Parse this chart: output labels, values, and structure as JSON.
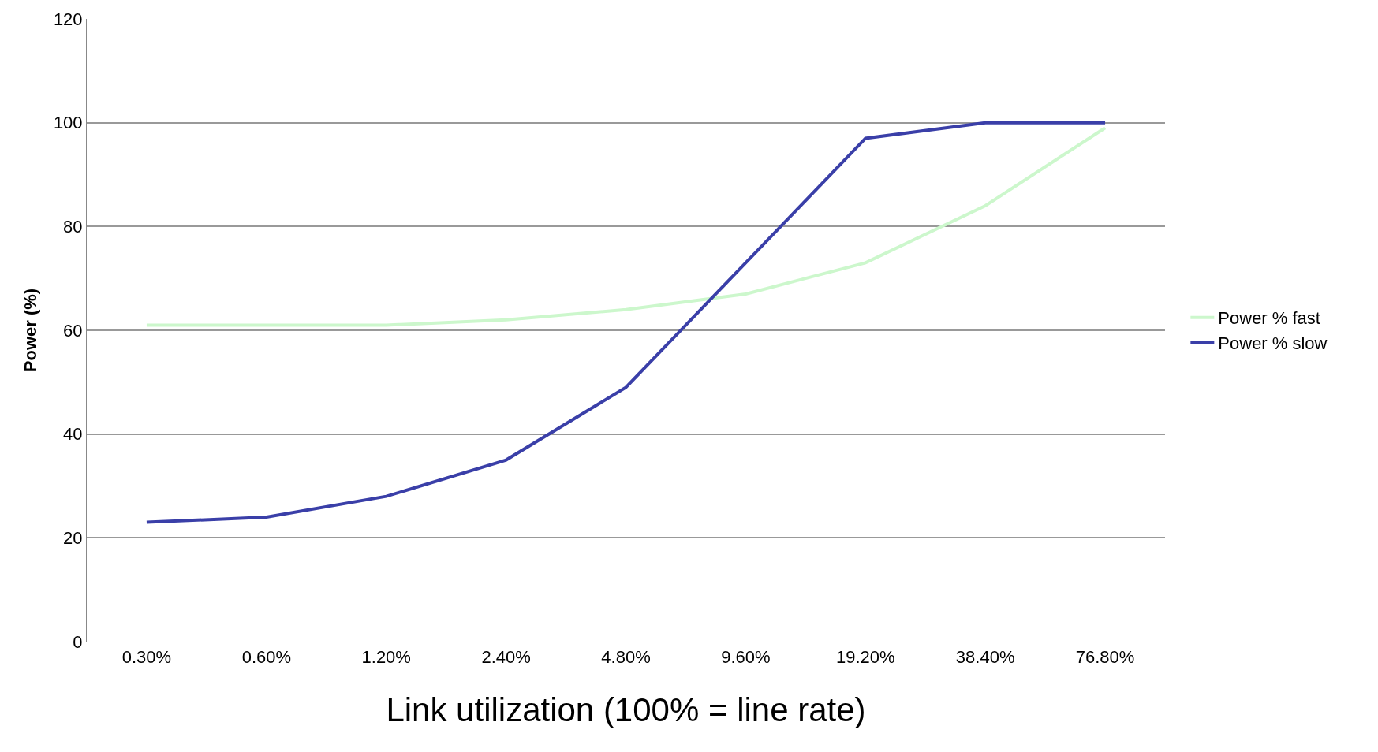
{
  "chart_data": {
    "type": "line",
    "xlabel": "Link utilization (100% = line rate)",
    "ylabel": "Power (%)",
    "categories": [
      "0.30%",
      "0.60%",
      "1.20%",
      "2.40%",
      "4.80%",
      "9.60%",
      "19.20%",
      "38.40%",
      "76.80%"
    ],
    "series": [
      {
        "name": "Power % fast",
        "color": "#ccf7cc",
        "values": [
          61,
          61,
          61,
          62,
          64,
          67,
          73,
          84,
          99
        ]
      },
      {
        "name": "Power % slow",
        "color": "#3a3fa8",
        "values": [
          23,
          24,
          28,
          35,
          49,
          73,
          97,
          100,
          100
        ]
      }
    ],
    "ylim": [
      0,
      120
    ],
    "yticks": [
      0,
      20,
      40,
      60,
      80,
      100,
      120
    ],
    "grid": "y",
    "legend": "right",
    "marker": "none",
    "line_style": "solid"
  }
}
